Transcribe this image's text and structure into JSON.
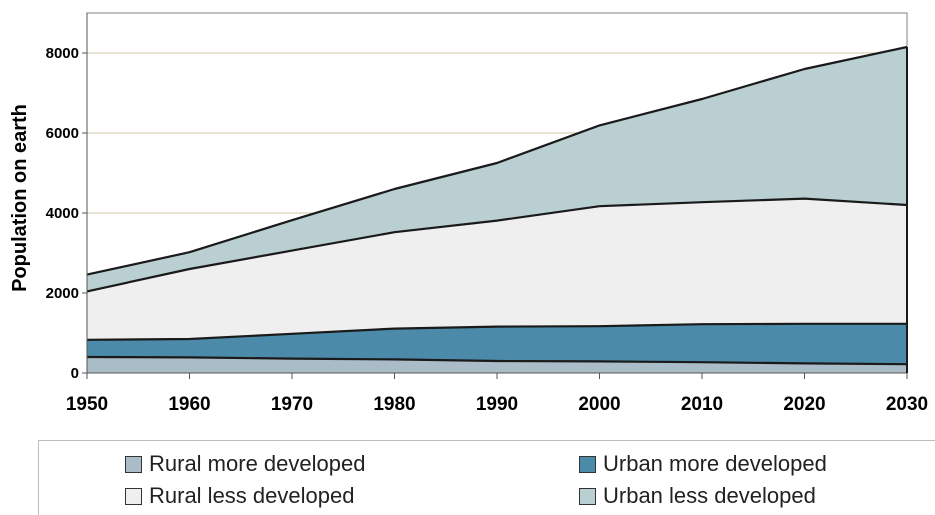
{
  "chart_data": {
    "type": "area",
    "stacked": true,
    "ylabel": "Population on earth",
    "xlabel": "",
    "x": [
      1950,
      1960,
      1970,
      1980,
      1990,
      2000,
      2010,
      2020,
      2030
    ],
    "ylim": [
      0,
      8000
    ],
    "yticks": [
      0,
      2000,
      4000,
      6000,
      8000
    ],
    "grid": true,
    "legend_position": "bottom",
    "series": [
      {
        "name": "Rural more developed",
        "color": "#a9bcc7",
        "values": [
          400,
          390,
          360,
          340,
          300,
          290,
          270,
          240,
          220
        ]
      },
      {
        "name": "Urban more developed",
        "color": "#4b8aa8",
        "values": [
          430,
          460,
          620,
          770,
          860,
          880,
          950,
          990,
          1010
        ]
      },
      {
        "name": "Rural less developed",
        "color": "#efefef",
        "values": [
          1210,
          1750,
          2080,
          2410,
          2650,
          3000,
          3050,
          3130,
          2970
        ]
      },
      {
        "name": "Urban less developed",
        "color": "#b9cfd2",
        "values": [
          420,
          420,
          760,
          1080,
          1440,
          2020,
          2580,
          3240,
          3950
        ]
      }
    ]
  },
  "legend": {
    "items": [
      {
        "label": "Rural more developed",
        "color": "#a9bcc7"
      },
      {
        "label": "Urban more developed",
        "color": "#4b8aa8"
      },
      {
        "label": "Rural less developed",
        "color": "#efefef"
      },
      {
        "label": "Urban less developed",
        "color": "#b9cfd2"
      }
    ]
  }
}
